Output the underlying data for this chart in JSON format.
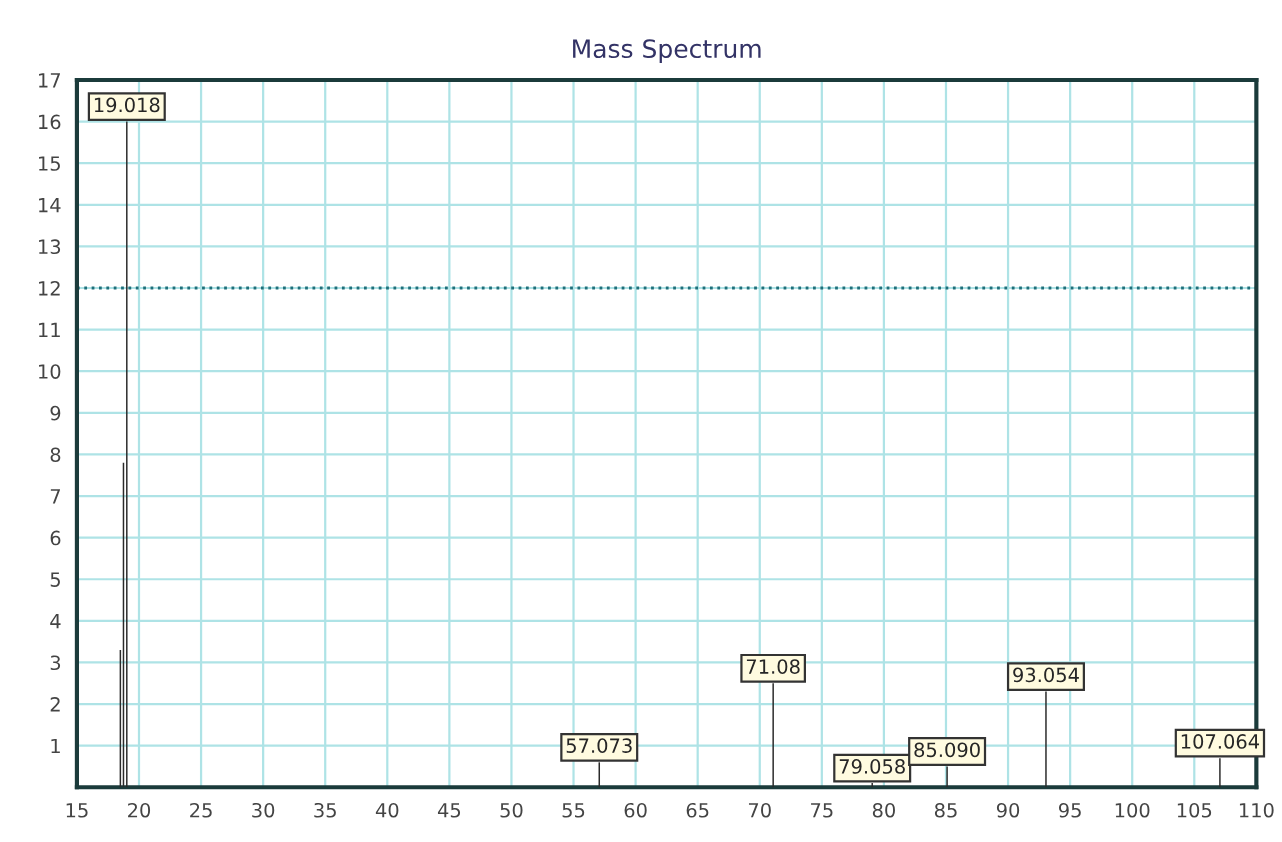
{
  "chart_data": {
    "type": "bar",
    "title": "Mass Spectrum",
    "x": [
      18.5,
      18.75,
      19.018,
      57.073,
      71.08,
      79.058,
      85.09,
      93.054,
      107.064
    ],
    "series": [
      {
        "color": "#2a2a2a",
        "values": [
          3.3,
          7.8,
          16,
          0.6,
          2.5,
          0.1,
          0.5,
          2.3,
          0.7
        ]
      }
    ],
    "xlim": [
      15,
      110
    ],
    "xticks": [
      15,
      20,
      25,
      30,
      35,
      40,
      45,
      50,
      55,
      60,
      65,
      70,
      75,
      80,
      85,
      90,
      95,
      100,
      105,
      110
    ],
    "ylim": [
      0,
      17
    ],
    "yticks": [
      {
        "value": 0,
        "label": null
      },
      1,
      2,
      3,
      4,
      5,
      6,
      7,
      8,
      9,
      10,
      11,
      12,
      13,
      14,
      15,
      16,
      17
    ],
    "grid": true,
    "ref_lines": [
      {
        "axis": "y",
        "value": 12,
        "color": "#1f6f7a",
        "line_style": "dotted"
      }
    ],
    "annotations": [
      {
        "text": "19.018",
        "x": 19.018,
        "y": 16
      },
      {
        "text": "57.073",
        "x": 57.073,
        "y": 0.6
      },
      {
        "text": "71.08",
        "x": 71.08,
        "y": 2.5
      },
      {
        "text": "79.058",
        "x": 79.058,
        "y": 0.1
      },
      {
        "text": "85.090",
        "x": 85.09,
        "y": 0.5
      },
      {
        "text": "93.054",
        "x": 93.054,
        "y": 2.3
      },
      {
        "text": "107.064",
        "x": 107.064,
        "y": 0.7
      }
    ]
  }
}
